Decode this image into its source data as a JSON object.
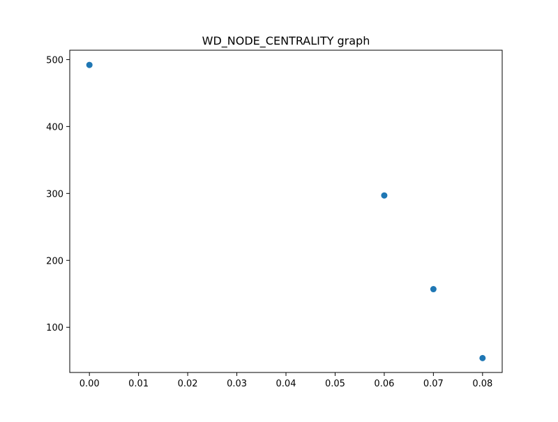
{
  "chart_data": {
    "type": "scatter",
    "title": "WD_NODE_CENTRALITY graph",
    "xlabel": "",
    "ylabel": "",
    "x": [
      0.0,
      0.06,
      0.07,
      0.08
    ],
    "y": [
      492,
      297,
      157,
      54
    ],
    "xlim": [
      -0.004,
      0.084
    ],
    "ylim": [
      32.5,
      514
    ],
    "xticks": [
      0.0,
      0.01,
      0.02,
      0.03,
      0.04,
      0.05,
      0.06,
      0.07,
      0.08
    ],
    "xtick_labels": [
      "0.00",
      "0.01",
      "0.02",
      "0.03",
      "0.04",
      "0.05",
      "0.06",
      "0.07",
      "0.08"
    ],
    "yticks": [
      100,
      200,
      300,
      400,
      500
    ],
    "ytick_labels": [
      "100",
      "200",
      "300",
      "400",
      "500"
    ],
    "grid": false,
    "legend": "none",
    "marker_color": "#1f77b4"
  }
}
